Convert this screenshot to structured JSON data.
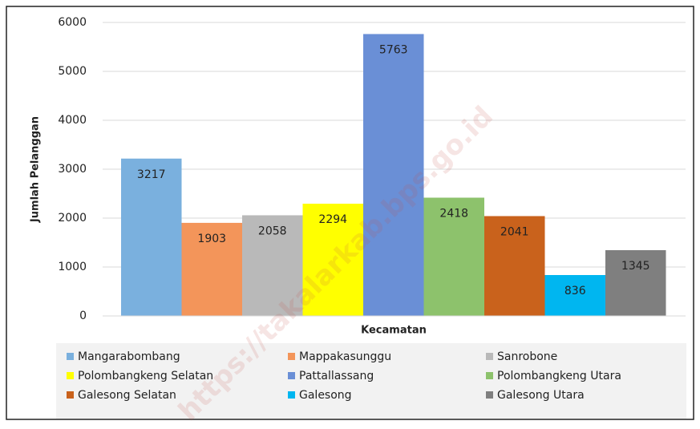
{
  "chart_data": {
    "type": "bar",
    "y_label": "Jumlah Pelanggan",
    "x_label": "Kecamatan",
    "watermark": "https://takalarkab.bps.go.id",
    "ylim": [
      0,
      6000
    ],
    "yticks": [
      0,
      1000,
      2000,
      3000,
      4000,
      5000,
      6000
    ],
    "grid": true,
    "series": [
      {
        "name": "Mangarabombang",
        "color": "#7ab0de",
        "values": [
          3217
        ]
      },
      {
        "name": "Mappakasunggu",
        "color": "#f3955a",
        "values": [
          1903
        ]
      },
      {
        "name": "Sanrobone",
        "color": "#b9b9b9",
        "values": [
          2058
        ]
      },
      {
        "name": "Polombangkeng Selatan",
        "color": "#ffff00",
        "values": [
          2294
        ]
      },
      {
        "name": "Pattallassang",
        "color": "#6a8fd6",
        "values": [
          5763
        ]
      },
      {
        "name": "Polombangkeng Utara",
        "color": "#8dc26c",
        "values": [
          2418
        ]
      },
      {
        "name": "Galesong Selatan",
        "color": "#c9621c",
        "values": [
          2041
        ]
      },
      {
        "name": "Galesong",
        "color": "#00b6f0",
        "values": [
          836
        ]
      },
      {
        "name": "Galesong Utara",
        "color": "#7f7f7f",
        "values": [
          1345
        ]
      }
    ]
  }
}
